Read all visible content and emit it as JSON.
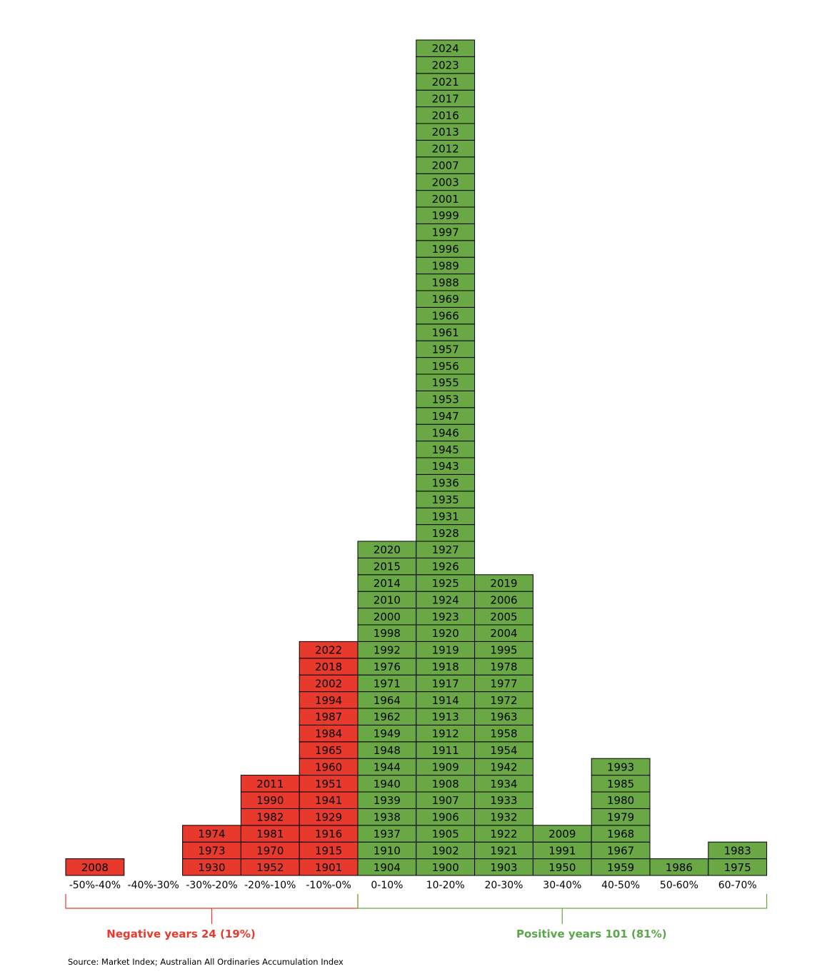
{
  "chart_data": {
    "type": "bar",
    "categories": [
      "-50%-40%",
      "-40%-30%",
      "-30%-20%",
      "-20%-10%",
      "-10%-0%",
      "0-10%",
      "10-20%",
      "20-30%",
      "30-40%",
      "40-50%",
      "50-60%",
      "60-70%"
    ],
    "series": [
      {
        "years": [
          [
            "2008"
          ],
          [],
          [
            "1930",
            "1973",
            "1974"
          ],
          [
            "1952",
            "1970",
            "1981",
            "1982",
            "1990",
            "2011"
          ],
          [
            "1901",
            "1915",
            "1916",
            "1929",
            "1941",
            "1951",
            "1960",
            "1965",
            "1984",
            "1987",
            "1994",
            "2002",
            "2018",
            "2022"
          ],
          [
            "1904",
            "1910",
            "1937",
            "1938",
            "1939",
            "1940",
            "1944",
            "1948",
            "1949",
            "1962",
            "1964",
            "1971",
            "1976",
            "1992",
            "1998",
            "2000",
            "2010",
            "2014",
            "2015",
            "2020"
          ],
          [
            "1900",
            "1902",
            "1905",
            "1906",
            "1907",
            "1908",
            "1909",
            "1911",
            "1912",
            "1913",
            "1914",
            "1917",
            "1918",
            "1919",
            "1920",
            "1923",
            "1924",
            "1925",
            "1926",
            "1927",
            "1928",
            "1931",
            "1935",
            "1936",
            "1943",
            "1945",
            "1946",
            "1947",
            "1953",
            "1955",
            "1956",
            "1957",
            "1961",
            "1966",
            "1969",
            "1988",
            "1989",
            "1996",
            "1997",
            "1999",
            "2001",
            "2003",
            "2007",
            "2012",
            "2013",
            "2016",
            "2017",
            "2021",
            "2023",
            "2024"
          ],
          [
            "1903",
            "1921",
            "1922",
            "1932",
            "1933",
            "1934",
            "1942",
            "1954",
            "1958",
            "1963",
            "1972",
            "1977",
            "1978",
            "1995",
            "2004",
            "2005",
            "2006",
            "2019"
          ],
          [
            "1950",
            "1991",
            "2009"
          ],
          [
            "1959",
            "1967",
            "1968",
            "1979",
            "1980",
            "1985",
            "1993"
          ],
          [
            "1986"
          ],
          [
            "1975",
            "1983"
          ]
        ],
        "values": [
          1,
          0,
          3,
          6,
          14,
          20,
          50,
          18,
          3,
          7,
          1,
          2
        ]
      }
    ],
    "colors": {
      "negative": "#e8392d",
      "positive": "#6aa845",
      "negative_text": "#e8392d",
      "positive_text": "#5aa64a"
    },
    "negative_count": 5,
    "annotations": {
      "negative": "Negative years 24 (19%)",
      "positive": "Positive years 101 (81%)"
    },
    "title": "",
    "xlabel": "",
    "ylabel": ""
  },
  "source": "Source: Market Index; Australian All Ordinaries Accumulation Index"
}
